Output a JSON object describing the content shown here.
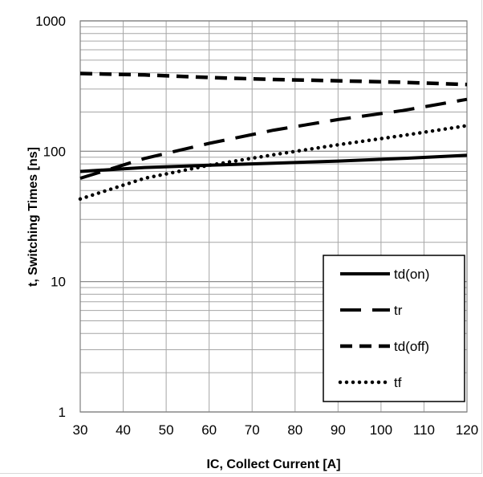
{
  "chart_data": {
    "type": "line",
    "xlabel": "IC, Collect Current [A]",
    "ylabel": "t, Switching Times [ns]",
    "xlim": [
      30,
      120
    ],
    "ylim": [
      1,
      1000
    ],
    "yscale": "log",
    "grid": true,
    "legend_position": "bottom-right",
    "x_ticks": [
      "30",
      "40",
      "50",
      "60",
      "70",
      "80",
      "90",
      "100",
      "110",
      "120"
    ],
    "y_ticks": [
      "1",
      "10",
      "100",
      "1000"
    ],
    "series": [
      {
        "name": "td(on)",
        "dash": "solid",
        "x": [
          30,
          45,
          60,
          75,
          90,
          105,
          120
        ],
        "values": [
          70,
          75,
          78,
          81,
          84,
          88,
          93
        ]
      },
      {
        "name": "tr",
        "dash": "long-dash",
        "x": [
          30,
          45,
          60,
          75,
          90,
          105,
          120
        ],
        "values": [
          62,
          88,
          115,
          145,
          175,
          205,
          250
        ]
      },
      {
        "name": "td(off)",
        "dash": "dash",
        "x": [
          30,
          45,
          60,
          75,
          90,
          105,
          120
        ],
        "values": [
          395,
          385,
          368,
          355,
          347,
          338,
          325
        ]
      },
      {
        "name": "tf",
        "dash": "dotted",
        "x": [
          30,
          45,
          60,
          75,
          90,
          105,
          120
        ],
        "values": [
          43,
          62,
          78,
          94,
          112,
          132,
          157
        ]
      }
    ]
  }
}
